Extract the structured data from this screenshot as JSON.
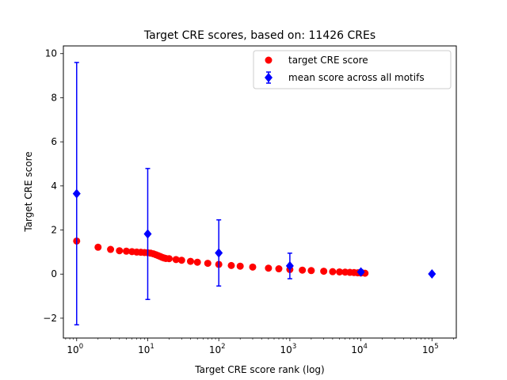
{
  "chart_data": {
    "type": "scatter",
    "title": "Target CRE scores, based on: 11426 CREs",
    "xlabel": "Target CRE score rank (log)",
    "ylabel": "Target CRE score",
    "x_scale": "log",
    "xlim": [
      0.65,
      220000
    ],
    "ylim": [
      -2.9,
      10.35
    ],
    "x_ticks": [
      {
        "value": 1,
        "base": "10",
        "exp": "0"
      },
      {
        "value": 10,
        "base": "10",
        "exp": "1"
      },
      {
        "value": 100,
        "base": "10",
        "exp": "2"
      },
      {
        "value": 1000,
        "base": "10",
        "exp": "3"
      },
      {
        "value": 10000,
        "base": "10",
        "exp": "4"
      },
      {
        "value": 100000,
        "base": "10",
        "exp": "5"
      }
    ],
    "y_ticks": [
      {
        "value": -2,
        "label": "−2"
      },
      {
        "value": 0,
        "label": "0"
      },
      {
        "value": 2,
        "label": "2"
      },
      {
        "value": 4,
        "label": "4"
      },
      {
        "value": 6,
        "label": "6"
      },
      {
        "value": 8,
        "label": "8"
      },
      {
        "value": 10,
        "label": "10"
      }
    ],
    "grid": false,
    "legend_position": "upper-right",
    "series": [
      {
        "name": "target CRE score",
        "marker": "circle",
        "color": "#ff0000",
        "points": [
          [
            1,
            1.5
          ],
          [
            2,
            1.22
          ],
          [
            3,
            1.12
          ],
          [
            4,
            1.06
          ],
          [
            5,
            1.04
          ],
          [
            6,
            1.02
          ],
          [
            7,
            1.0
          ],
          [
            8,
            0.99
          ],
          [
            9,
            0.98
          ],
          [
            10,
            0.97
          ],
          [
            11,
            0.95
          ],
          [
            12,
            0.92
          ],
          [
            13,
            0.88
          ],
          [
            14,
            0.84
          ],
          [
            15,
            0.8
          ],
          [
            16,
            0.76
          ],
          [
            17,
            0.73
          ],
          [
            18,
            0.71
          ],
          [
            20,
            0.7
          ],
          [
            25,
            0.66
          ],
          [
            30,
            0.63
          ],
          [
            40,
            0.58
          ],
          [
            50,
            0.54
          ],
          [
            70,
            0.49
          ],
          [
            100,
            0.44
          ],
          [
            150,
            0.39
          ],
          [
            200,
            0.36
          ],
          [
            300,
            0.32
          ],
          [
            500,
            0.27
          ],
          [
            700,
            0.24
          ],
          [
            1000,
            0.21
          ],
          [
            1500,
            0.18
          ],
          [
            2000,
            0.16
          ],
          [
            3000,
            0.13
          ],
          [
            4000,
            0.11
          ],
          [
            5000,
            0.1
          ],
          [
            6000,
            0.09
          ],
          [
            7000,
            0.08
          ],
          [
            8000,
            0.07
          ],
          [
            9000,
            0.06
          ],
          [
            10000,
            0.05
          ],
          [
            11426,
            0.04
          ]
        ]
      },
      {
        "name": "mean score across all motifs",
        "marker": "diamond",
        "color": "#0000ff",
        "errorbars": true,
        "points": [
          {
            "x": 1,
            "y": 3.65,
            "err": 5.95
          },
          {
            "x": 10,
            "y": 1.82,
            "err": 2.97
          },
          {
            "x": 100,
            "y": 0.96,
            "err": 1.5
          },
          {
            "x": 1000,
            "y": 0.37,
            "err": 0.58
          },
          {
            "x": 10000,
            "y": 0.1,
            "err": 0.1
          },
          {
            "x": 100000,
            "y": 0.01,
            "err": 0.0
          }
        ]
      }
    ]
  }
}
